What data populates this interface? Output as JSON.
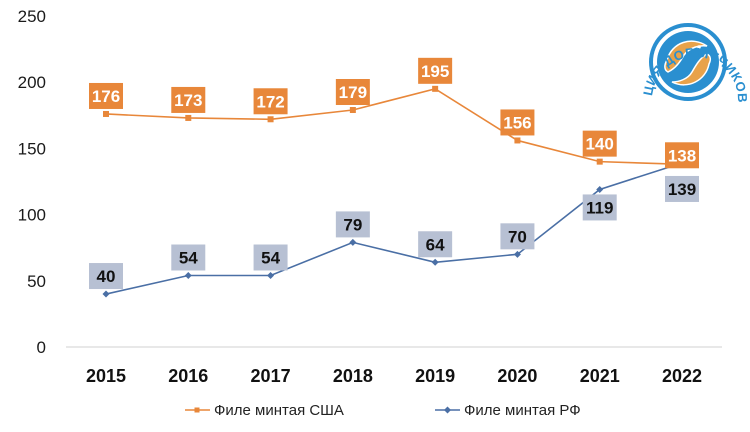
{
  "chart_data": {
    "type": "line",
    "categories": [
      "2015",
      "2016",
      "2017",
      "2018",
      "2019",
      "2020",
      "2021",
      "2022"
    ],
    "series": [
      {
        "name": "Филе минтая США",
        "values": [
          176,
          173,
          172,
          179,
          195,
          156,
          140,
          138
        ],
        "color": "#e8873a",
        "label_bg": "#e8873a",
        "marker": "square"
      },
      {
        "name": "Филе минтая РФ",
        "values": [
          40,
          54,
          54,
          79,
          64,
          70,
          119,
          139
        ],
        "color": "#4a6fa5",
        "label_bg": "#b7c0d3",
        "marker": "diamond"
      }
    ],
    "ylim": [
      0,
      250
    ],
    "yticks": [
      0,
      50,
      100,
      150,
      200,
      250
    ],
    "grid": false,
    "legend_position": "bottom"
  },
  "logo": {
    "text": "АССОЦИАЦИЯ ДОБЫТЧИКОВ МИНТАЯ",
    "colors": {
      "ring": "#2a8fd0",
      "fish": "#e8a24a"
    }
  }
}
